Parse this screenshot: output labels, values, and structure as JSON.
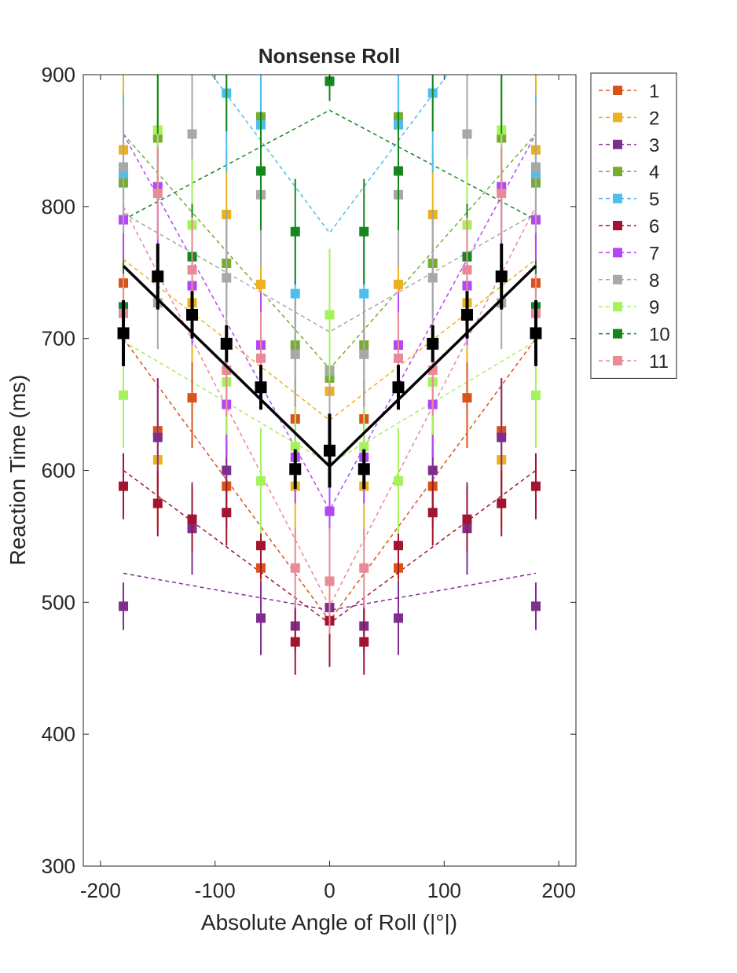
{
  "chart_data": {
    "type": "line",
    "title": "Nonsense Roll",
    "xlabel": "Absolute Angle of Roll (|°|)",
    "ylabel": "Reaction Time (ms)",
    "xlim": [
      -215,
      215
    ],
    "ylim": [
      300,
      900
    ],
    "xticks": [
      -200,
      -100,
      0,
      100,
      200
    ],
    "xtick_labels": [
      "-200",
      "-100",
      "0",
      "100",
      "200"
    ],
    "yticks": [
      300,
      400,
      500,
      600,
      700,
      800,
      900
    ],
    "ytick_labels": [
      "300",
      "400",
      "500",
      "600",
      "700",
      "800",
      "900"
    ],
    "grid": false,
    "legend_position": "outside-top-right",
    "x": [
      -180,
      -150,
      -120,
      -90,
      -60,
      -30,
      0,
      30,
      60,
      90,
      120,
      150,
      180
    ],
    "series": [
      {
        "name": "1",
        "color": "#D95319",
        "points": [
          742,
          630,
          655,
          588,
          526,
          639,
          486,
          639,
          526,
          588,
          655,
          630,
          742
        ],
        "err": [
          30,
          40,
          38,
          32,
          30,
          30,
          25,
          30,
          30,
          32,
          38,
          40,
          30
        ],
        "fit": [
          700,
          486
        ]
      },
      {
        "name": "2",
        "color": "#EDB120",
        "points": [
          843,
          608,
          727,
          794,
          741,
          588,
          660,
          588,
          741,
          794,
          727,
          608,
          843
        ],
        "err": [
          60,
          50,
          45,
          50,
          55,
          40,
          40,
          40,
          55,
          50,
          45,
          50,
          60
        ],
        "fit": [
          760,
          638
        ]
      },
      {
        "name": "3",
        "color": "#7E2F8E",
        "points": [
          497,
          625,
          556,
          600,
          488,
          482,
          496,
          482,
          488,
          600,
          556,
          625,
          497
        ],
        "err": [
          18,
          45,
          35,
          30,
          28,
          20,
          20,
          20,
          28,
          30,
          35,
          45,
          18
        ],
        "fit": [
          522,
          494
        ]
      },
      {
        "name": "4",
        "color": "#77AC30",
        "points": [
          818,
          852,
          762,
          757,
          868,
          695,
          670,
          695,
          868,
          757,
          762,
          852,
          818
        ],
        "err": [
          50,
          50,
          45,
          40,
          50,
          40,
          40,
          40,
          50,
          40,
          45,
          50,
          50
        ],
        "fit": [
          855,
          677
        ]
      },
      {
        "name": "5",
        "color": "#4DBEEE",
        "points": [
          825,
          940,
          930,
          886,
          862,
          734,
          675,
          734,
          862,
          886,
          930,
          940,
          825
        ],
        "err": [
          60,
          60,
          60,
          60,
          60,
          50,
          40,
          50,
          60,
          60,
          60,
          60,
          60
        ],
        "fit": [
          990,
          780
        ]
      },
      {
        "name": "6",
        "color": "#A2142F",
        "points": [
          588,
          575,
          563,
          568,
          543,
          470,
          486,
          470,
          543,
          568,
          563,
          575,
          588
        ],
        "err": [
          25,
          25,
          25,
          25,
          25,
          25,
          35,
          25,
          25,
          25,
          25,
          25,
          25
        ],
        "fit": [
          600,
          484
        ]
      },
      {
        "name": "7",
        "color": "#B347F5",
        "points": [
          790,
          815,
          740,
          650,
          695,
          610,
          569,
          610,
          695,
          650,
          740,
          815,
          790
        ],
        "err": [
          60,
          50,
          45,
          40,
          40,
          35,
          30,
          35,
          40,
          40,
          45,
          50,
          60
        ],
        "fit": [
          855,
          570
        ]
      },
      {
        "name": "8",
        "color": "#A8A8A8",
        "points": [
          830,
          727,
          855,
          746,
          809,
          688,
          676,
          688,
          809,
          746,
          855,
          727,
          830
        ],
        "err": [
          50,
          35,
          60,
          50,
          55,
          40,
          40,
          40,
          55,
          50,
          60,
          35,
          50
        ],
        "fit": [
          795,
          705
        ]
      },
      {
        "name": "9",
        "color": "#A6F25C",
        "points": [
          657,
          858,
          786,
          667,
          592,
          618,
          718,
          618,
          592,
          667,
          786,
          858,
          657
        ],
        "err": [
          40,
          50,
          50,
          40,
          40,
          30,
          50,
          30,
          40,
          40,
          50,
          50,
          40
        ],
        "fit": [
          698,
          605
        ]
      },
      {
        "name": "10",
        "color": "#16861F",
        "points": [
          724,
          905,
          762,
          907,
          827,
          781,
          895,
          781,
          827,
          907,
          762,
          905,
          724
        ],
        "err": [
          35,
          50,
          40,
          50,
          45,
          40,
          15,
          40,
          45,
          50,
          40,
          50,
          35
        ],
        "fit": [
          790,
          873
        ]
      },
      {
        "name": "11",
        "color": "#E88A97",
        "points": [
          719,
          810,
          752,
          676,
          685,
          526,
          516,
          526,
          685,
          676,
          752,
          810,
          719
        ],
        "err": [
          30,
          35,
          40,
          35,
          35,
          30,
          40,
          30,
          35,
          35,
          40,
          35,
          30
        ],
        "fit": [
          800,
          497
        ]
      }
    ],
    "mean": {
      "color": "#000000",
      "points": [
        704,
        747,
        718,
        696,
        663,
        601,
        615,
        601,
        663,
        696,
        718,
        747,
        704
      ],
      "err": [
        25,
        25,
        18,
        14,
        17,
        15,
        28,
        15,
        17,
        14,
        18,
        25,
        25
      ],
      "fit": [
        755,
        603
      ]
    }
  }
}
